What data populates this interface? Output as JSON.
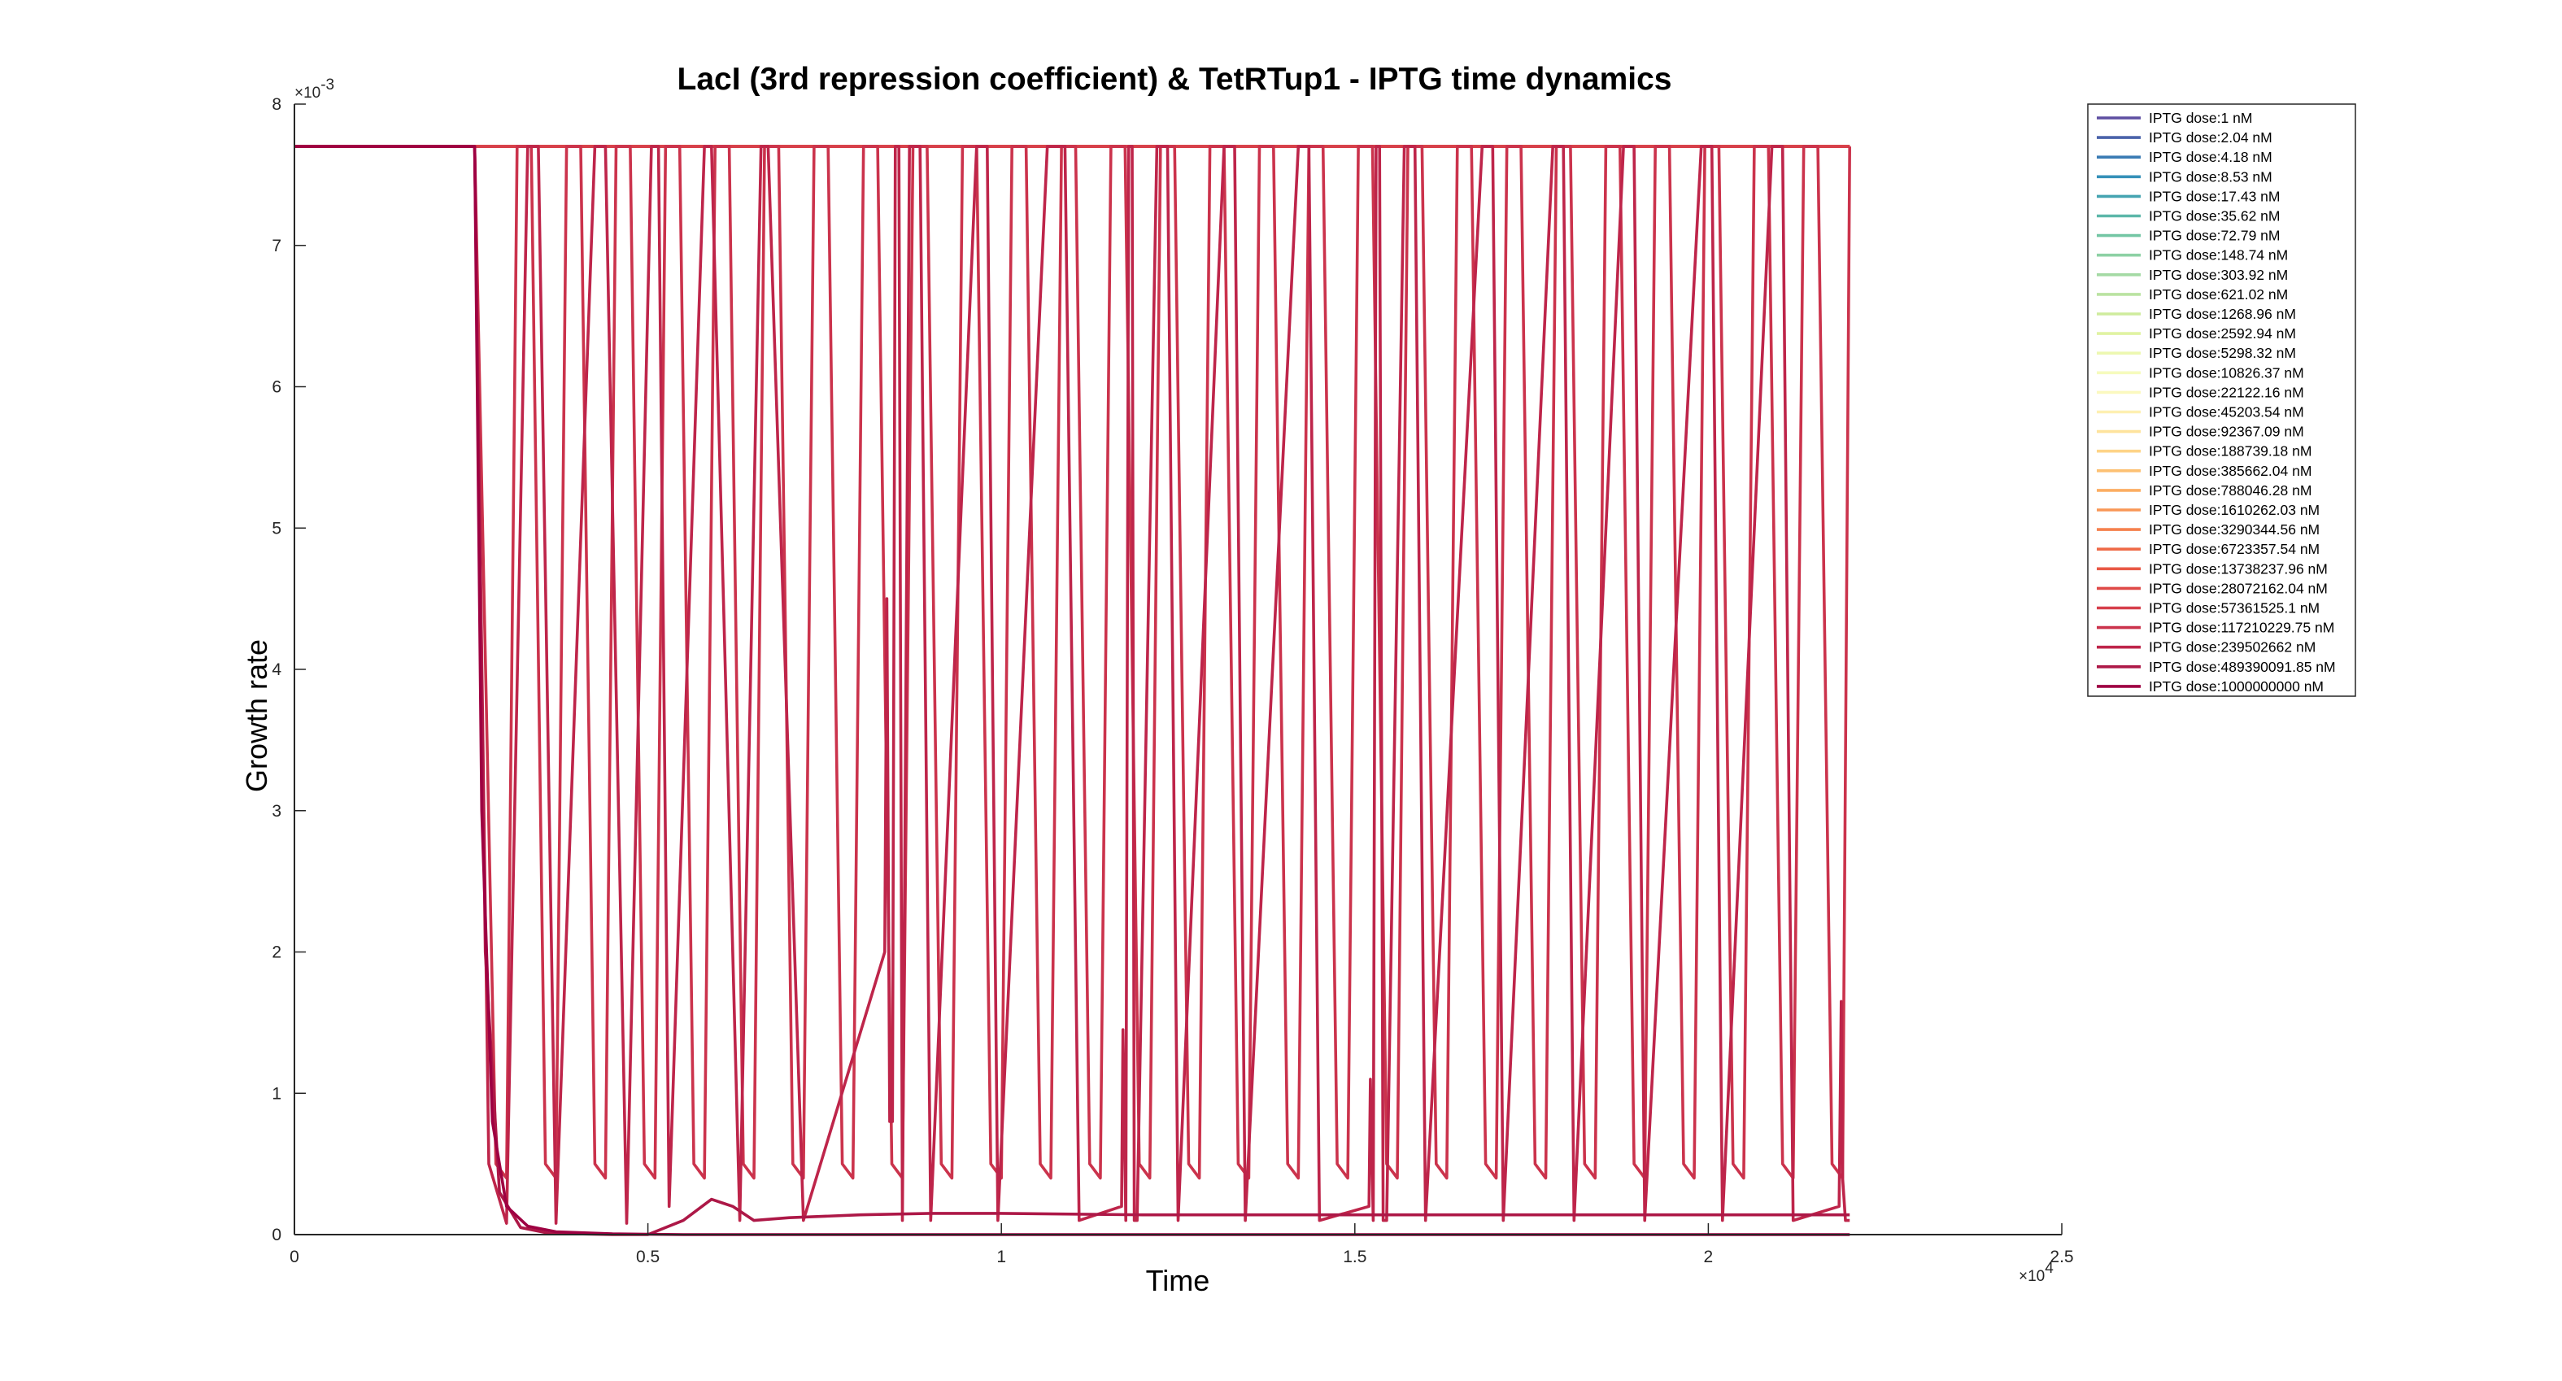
{
  "chart_data": {
    "type": "line",
    "title": "LacI (3rd repression coefficient) & TetRTup1 - IPTG time dynamics",
    "xlabel": "Time",
    "ylabel": "Growth rate",
    "x_multiplier": "×10",
    "x_multiplier_exp": "4",
    "y_multiplier": "×10",
    "y_multiplier_exp": "-3",
    "xlim": [
      0,
      25000
    ],
    "ylim": [
      0,
      0.008
    ],
    "x_ticks": [
      0,
      5000,
      10000,
      15000,
      20000,
      25000
    ],
    "x_tick_labels": [
      "0",
      "0.5",
      "1",
      "1.5",
      "2",
      "2.5"
    ],
    "y_ticks": [
      0,
      0.001,
      0.002,
      0.003,
      0.004,
      0.005,
      0.006,
      0.007,
      0.008
    ],
    "y_tick_labels": [
      "0",
      "1",
      "2",
      "3",
      "4",
      "5",
      "6",
      "7",
      "8"
    ],
    "grid": false,
    "legend_position": "top-right",
    "series": [
      {
        "name": "IPTG dose:1 nM",
        "color": "#5e4fa2",
        "x": [
          0,
          22000
        ],
        "y": [
          0.0077,
          0.0077
        ]
      },
      {
        "name": "IPTG dose:2.04 nM",
        "color": "#4a62aa",
        "x": [
          0,
          22000
        ],
        "y": [
          0.0077,
          0.0077
        ]
      },
      {
        "name": "IPTG dose:4.18 nM",
        "color": "#3a7bb4",
        "x": [
          0,
          22000
        ],
        "y": [
          0.0077,
          0.0077
        ]
      },
      {
        "name": "IPTG dose:8.53 nM",
        "color": "#3590b8",
        "x": [
          0,
          22000
        ],
        "y": [
          0.0077,
          0.0077
        ]
      },
      {
        "name": "IPTG dose:17.43 nM",
        "color": "#46a4b1",
        "x": [
          0,
          22000
        ],
        "y": [
          0.0077,
          0.0077
        ]
      },
      {
        "name": "IPTG dose:35.62 nM",
        "color": "#5cb7a9",
        "x": [
          0,
          22000
        ],
        "y": [
          0.0077,
          0.0077
        ]
      },
      {
        "name": "IPTG dose:72.79 nM",
        "color": "#73c6a4",
        "x": [
          0,
          22000
        ],
        "y": [
          0.0077,
          0.0077
        ]
      },
      {
        "name": "IPTG dose:148.74 nM",
        "color": "#8dd1a4",
        "x": [
          0,
          22000
        ],
        "y": [
          0.0077,
          0.0077
        ]
      },
      {
        "name": "IPTG dose:303.92 nM",
        "color": "#a4daa4",
        "x": [
          0,
          22000
        ],
        "y": [
          0.0077,
          0.0077
        ]
      },
      {
        "name": "IPTG dose:621.02 nM",
        "color": "#bae3a1",
        "x": [
          0,
          22000
        ],
        "y": [
          0.0077,
          0.0077
        ]
      },
      {
        "name": "IPTG dose:1268.96 nM",
        "color": "#cfec9d",
        "x": [
          0,
          22000
        ],
        "y": [
          0.0077,
          0.0077
        ]
      },
      {
        "name": "IPTG dose:2592.94 nM",
        "color": "#e0f3a2",
        "x": [
          0,
          22000
        ],
        "y": [
          0.0077,
          0.0077
        ]
      },
      {
        "name": "IPTG dose:5298.32 nM",
        "color": "#edf8b1",
        "x": [
          0,
          22000
        ],
        "y": [
          0.0077,
          0.0077
        ]
      },
      {
        "name": "IPTG dose:10826.37 nM",
        "color": "#f6fbbd",
        "x": [
          0,
          22000
        ],
        "y": [
          0.0077,
          0.0077
        ]
      },
      {
        "name": "IPTG dose:22122.16 nM",
        "color": "#fbf9bf",
        "x": [
          0,
          22000
        ],
        "y": [
          0.0077,
          0.0077
        ]
      },
      {
        "name": "IPTG dose:45203.54 nM",
        "color": "#fef0b1",
        "x": [
          0,
          22000
        ],
        "y": [
          0.0077,
          0.0077
        ]
      },
      {
        "name": "IPTG dose:92367.09 nM",
        "color": "#fee39d",
        "x": [
          0,
          22000
        ],
        "y": [
          0.0077,
          0.0077
        ]
      },
      {
        "name": "IPTG dose:188739.18 nM",
        "color": "#fed487",
        "x": [
          0,
          22000
        ],
        "y": [
          0.0077,
          0.0077
        ]
      },
      {
        "name": "IPTG dose:385662.04 nM",
        "color": "#fdc173",
        "x": [
          0,
          22000
        ],
        "y": [
          0.0077,
          0.0077
        ]
      },
      {
        "name": "IPTG dose:788046.28 nM",
        "color": "#fcad62",
        "x": [
          0,
          22000
        ],
        "y": [
          0.0077,
          0.0077
        ]
      },
      {
        "name": "IPTG dose:1610262.03 nM",
        "color": "#f99756",
        "x": [
          0,
          22000
        ],
        "y": [
          0.0077,
          0.0077
        ]
      },
      {
        "name": "IPTG dose:3290344.56 nM",
        "color": "#f5804d",
        "x": [
          0,
          22000
        ],
        "y": [
          0.0077,
          0.0077
        ]
      },
      {
        "name": "IPTG dose:6723357.54 nM",
        "color": "#ef6a47",
        "x": [
          0,
          22000
        ],
        "y": [
          0.0077,
          0.0077
        ]
      },
      {
        "name": "IPTG dose:13738237.96 nM",
        "color": "#e85845",
        "x": [
          0,
          22000
        ],
        "y": [
          0.0077,
          0.0077
        ]
      },
      {
        "name": "IPTG dose:28072162.04 nM",
        "color": "#df4a48",
        "x": [
          0,
          22000
        ],
        "y": [
          0.0077,
          0.0077
        ]
      },
      {
        "name": "IPTG dose:57361525.1 nM",
        "color": "#d63f4b",
        "x": [
          0,
          22000
        ],
        "y": [
          0.0077,
          0.0077
        ]
      },
      {
        "name": "IPTG dose:117210229.75 nM",
        "color": "#cb334c",
        "x": [
          0,
          2550,
          2850,
          3000,
          3150,
          3350,
          3550,
          3700,
          3850,
          4050,
          4250,
          4400,
          4550,
          4750,
          4950,
          5100,
          5250,
          5450,
          5650,
          5800,
          5950,
          6150,
          6350,
          6500,
          6650,
          6850,
          7050,
          7200,
          7350,
          7550,
          7750,
          7900,
          8050,
          8250,
          8450,
          8600,
          8750,
          8950,
          9150,
          9300,
          9450,
          9650,
          9850,
          10000,
          10150,
          10350,
          10550,
          10700,
          10850,
          11050,
          11250,
          11400,
          11550,
          11750,
          11950,
          12100,
          12250,
          12450,
          12650,
          12800,
          12950,
          13150,
          13350,
          13500,
          13650,
          13850,
          14050,
          14200,
          14350,
          14550,
          14750,
          14900,
          15050,
          15250,
          15450,
          15600,
          15750,
          15950,
          16150,
          16300,
          16450,
          16650,
          16850,
          17000,
          17150,
          17350,
          17550,
          17700,
          17850,
          18050,
          18250,
          18400,
          18550,
          18750,
          18950,
          19100,
          19250,
          19450,
          19650,
          19800,
          19950,
          20150,
          20350,
          20500,
          20650,
          20850,
          21050,
          21200,
          21350,
          21550,
          21750,
          21900,
          22000
        ],
        "y": [
          0.0077,
          0.0077,
          0.0005,
          0.0004,
          0.0077,
          0.0077,
          0.0005,
          0.0004,
          0.0077,
          0.0077,
          0.0005,
          0.0004,
          0.0077,
          0.0077,
          0.0005,
          0.0004,
          0.0077,
          0.0077,
          0.0005,
          0.0004,
          0.0077,
          0.0077,
          0.0005,
          0.0004,
          0.0077,
          0.0077,
          0.0005,
          0.0004,
          0.0077,
          0.0077,
          0.0005,
          0.0004,
          0.0077,
          0.0077,
          0.0005,
          0.0004,
          0.0077,
          0.0077,
          0.0005,
          0.0004,
          0.0077,
          0.0077,
          0.0005,
          0.0004,
          0.0077,
          0.0077,
          0.0005,
          0.0004,
          0.0077,
          0.0077,
          0.0005,
          0.0004,
          0.0077,
          0.0077,
          0.0005,
          0.0004,
          0.0077,
          0.0077,
          0.0005,
          0.0004,
          0.0077,
          0.0077,
          0.0005,
          0.0004,
          0.0077,
          0.0077,
          0.0005,
          0.0004,
          0.0077,
          0.0077,
          0.0005,
          0.0004,
          0.0077,
          0.0077,
          0.0005,
          0.0004,
          0.0077,
          0.0077,
          0.0005,
          0.0004,
          0.0077,
          0.0077,
          0.0005,
          0.0004,
          0.0077,
          0.0077,
          0.0005,
          0.0004,
          0.0077,
          0.0077,
          0.0005,
          0.0004,
          0.0077,
          0.0077,
          0.0005,
          0.0004,
          0.0077,
          0.0077,
          0.0005,
          0.0004,
          0.0077,
          0.0077,
          0.0005,
          0.0004,
          0.0077,
          0.0077,
          0.0005,
          0.0004,
          0.0077,
          0.0077,
          0.0005,
          0.0004,
          0.0077
        ]
      },
      {
        "name": "IPTG dose:239502662 nM",
        "color": "#be254a",
        "x": [
          0,
          2550,
          2750,
          3000,
          3300,
          3450,
          3700,
          4250,
          4400,
          4700,
          5050,
          5150,
          5300,
          5800,
          5900,
          6300,
          6600,
          6700,
          7200,
          8350,
          8380,
          8420,
          8460,
          8500,
          8550,
          8600,
          8700,
          8850,
          9000,
          9650,
          9800,
          9950,
          10650,
          10900,
          11100,
          11700,
          11720,
          11760,
          11800,
          11850,
          11880,
          11920,
          12200,
          12350,
          12500,
          13150,
          13300,
          13450,
          14200,
          14350,
          14500,
          15200,
          15220,
          15260,
          15300,
          15350,
          15400,
          15450,
          15700,
          15850,
          16000,
          16800,
          16950,
          17100,
          17800,
          17950,
          18100,
          18800,
          18950,
          19100,
          19900,
          20050,
          20200,
          20900,
          21050,
          21200,
          21850,
          21880,
          21900,
          21940,
          22000
        ],
        "y": [
          0.0077,
          0.0077,
          0.0005,
          8e-05,
          0.0077,
          0.0077,
          8e-05,
          0.0077,
          0.0077,
          8e-05,
          0.0077,
          0.0077,
          0.0002,
          0.0077,
          0.0077,
          0.0001,
          0.0077,
          0.0077,
          0.0001,
          0.002,
          0.0045,
          0.0008,
          0.0008,
          0.0077,
          0.0077,
          0.0001,
          0.0077,
          0.0077,
          0.0001,
          0.0077,
          0.0077,
          0.0001,
          0.0077,
          0.0077,
          0.0001,
          0.0002,
          0.00145,
          0.0001,
          0.0077,
          0.0077,
          0.0001,
          0.0001,
          0.0077,
          0.0077,
          0.0001,
          0.0077,
          0.0077,
          0.0001,
          0.0077,
          0.0077,
          0.0001,
          0.0002,
          0.0011,
          0.0001,
          0.0077,
          0.0077,
          0.0001,
          0.0001,
          0.0077,
          0.0077,
          0.0001,
          0.0077,
          0.0077,
          0.0001,
          0.0077,
          0.0077,
          0.0001,
          0.0077,
          0.0077,
          0.0001,
          0.0077,
          0.0077,
          0.0001,
          0.0077,
          0.0077,
          0.0001,
          0.0002,
          0.00165,
          0.0004,
          0.0001,
          0.0001
        ]
      },
      {
        "name": "IPTG dose:489390091.85 nM",
        "color": "#ad1847",
        "x": [
          0,
          2550,
          2700,
          2900,
          3200,
          3600,
          4500,
          5000,
          5500,
          5900,
          6200,
          6500,
          7000,
          8000,
          9000,
          10000,
          12000,
          15000,
          18000,
          22000
        ],
        "y": [
          0.0077,
          0.0077,
          0.002,
          0.0003,
          5e-05,
          1e-05,
          0.0,
          0.0,
          0.0001,
          0.00025,
          0.0002,
          0.0001,
          0.00012,
          0.00014,
          0.00015,
          0.00015,
          0.00014,
          0.00014,
          0.00014,
          0.00014
        ]
      },
      {
        "name": "IPTG dose:1000000000 nM",
        "color": "#9e0142",
        "x": [
          0,
          2550,
          2650,
          2800,
          3000,
          3300,
          3700,
          4500,
          5500,
          8000,
          12000,
          16000,
          22000
        ],
        "y": [
          0.0077,
          0.0077,
          0.003,
          0.0008,
          0.0002,
          6e-05,
          2e-05,
          5e-06,
          0.0,
          0.0,
          0.0,
          0.0,
          0.0
        ]
      }
    ]
  }
}
